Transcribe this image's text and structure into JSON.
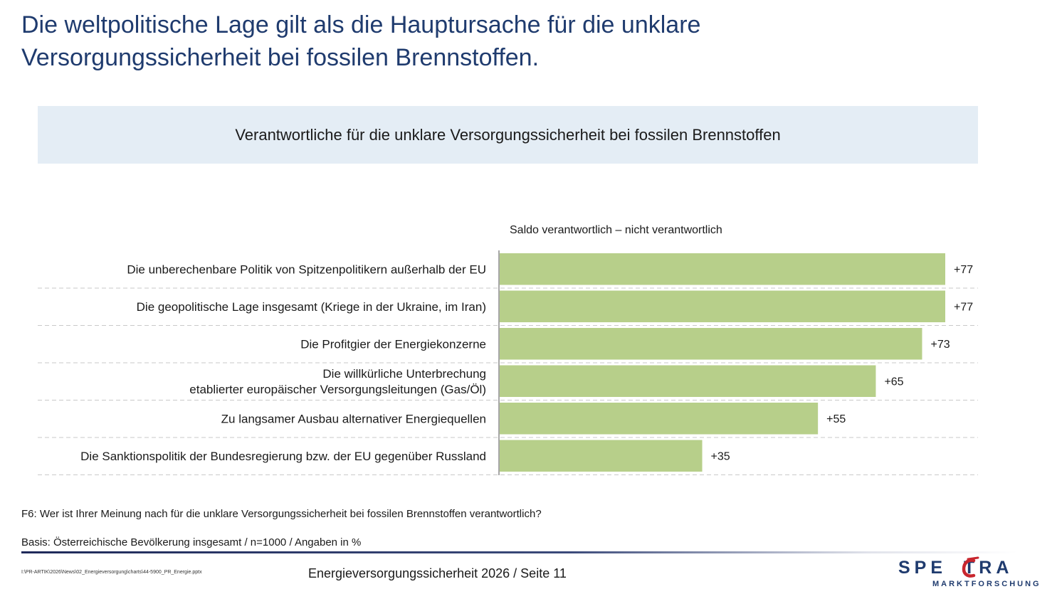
{
  "slide": {
    "title_line1": "Die weltpolitische Lage gilt als die Hauptursache für die unklare",
    "title_line2": "Versorgungssicherheit bei fossilen Brennstoffen.",
    "banner": "Verantwortliche für die unklare Versorgungssicherheit bei fossilen Brennstoffen",
    "question": "F6: Wer ist Ihrer Meinung nach für die unklare Versorgungssicherheit bei fossilen Brennstoffen verantwortlich?",
    "basis": "Basis: Österreichische Bevölkerung insgesamt / n=1000 / Angaben in %",
    "filepath": "I:\\PR-ARTIK\\2026\\News\\02_Energieversorgung\\charts\\44-5900_PR_Energie.pptx",
    "page_label": "Energieversorgungssicherheit 2026  /  Seite 11",
    "logo_name": "SPECTRA",
    "logo_sub": "MARKTFORSCHUNG",
    "colors": {
      "title": "#1f3b6e",
      "bar": "#b7cf8a",
      "banner": "#e4edf5",
      "accent_red": "#c8262e"
    }
  },
  "chart_data": {
    "type": "bar",
    "orientation": "horizontal",
    "series_label": "Saldo verantwortlich – nicht verantwortlich",
    "categories": [
      [
        "Die unberechenbare Politik von Spitzenpolitikern außerhalb der EU"
      ],
      [
        "Die geopolitische Lage insgesamt (Kriege in der Ukraine, im Iran)"
      ],
      [
        "Die Profitgier der Energiekonzerne"
      ],
      [
        "Die willkürliche Unterbrechung",
        "etablierter europäischer Versorgungsleitungen (Gas/Öl)"
      ],
      [
        "Zu langsamer Ausbau alternativer Energiequellen"
      ],
      [
        "Die Sanktionspolitik der Bundesregierung bzw. der EU gegenüber Russland"
      ]
    ],
    "values": [
      77,
      77,
      73,
      65,
      55,
      35
    ],
    "value_labels": [
      "+77",
      "+77",
      "+73",
      "+65",
      "+55",
      "+35"
    ],
    "xlim": [
      0,
      77
    ],
    "grid": false,
    "legend": "none"
  }
}
